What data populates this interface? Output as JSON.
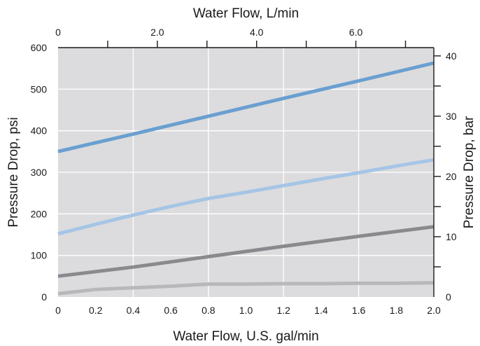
{
  "chart_data": {
    "type": "line",
    "xlabel": "Water Flow, U.S. gal/min",
    "ylabel": "Pressure Drop, psi",
    "x2label": "Water Flow, L/min",
    "y2label": "Pressure Drop, bar",
    "xlim": [
      0,
      2.0
    ],
    "ylim": [
      0,
      600
    ],
    "x2lim": [
      0,
      7.5708
    ],
    "y2lim": [
      0,
      41.37
    ],
    "x_ticks": [
      "0",
      "0.2",
      "0.4",
      "0.6",
      "0.8",
      "1.0",
      "1.2",
      "1.4",
      "1.6",
      "1.8",
      "2.0"
    ],
    "y_ticks": [
      "0",
      "100",
      "200",
      "300",
      "400",
      "500",
      "600"
    ],
    "x2_ticks": [
      {
        "value": 0,
        "label": "0"
      },
      {
        "value": 1,
        "label": ""
      },
      {
        "value": 2,
        "label": "2.0"
      },
      {
        "value": 3,
        "label": ""
      },
      {
        "value": 4,
        "label": "4.0"
      },
      {
        "value": 5,
        "label": ""
      },
      {
        "value": 6,
        "label": "6.0"
      },
      {
        "value": 7,
        "label": ""
      }
    ],
    "y2_ticks": [
      {
        "value": 0,
        "label": "0"
      },
      {
        "value": 5,
        "label": ""
      },
      {
        "value": 10,
        "label": "10"
      },
      {
        "value": 15,
        "label": ""
      },
      {
        "value": 20,
        "label": "20"
      },
      {
        "value": 25,
        "label": ""
      },
      {
        "value": 30,
        "label": "30"
      },
      {
        "value": 35,
        "label": ""
      },
      {
        "value": 40,
        "label": "40"
      }
    ],
    "grid": true,
    "background_color": "#dcdcde",
    "grid_color": "#ffffff",
    "series": [
      {
        "color": "#6a9fd0",
        "x": [
          0,
          0.4,
          0.8,
          1.2,
          1.6,
          2.0
        ],
        "values": [
          350,
          392,
          435,
          478,
          520,
          563
        ]
      },
      {
        "color": "#a6c5e6",
        "x": [
          0,
          0.2,
          0.4,
          0.6,
          0.8,
          1.0,
          1.2,
          1.4,
          1.6,
          1.8,
          2.0
        ],
        "values": [
          152,
          175,
          197,
          218,
          237,
          252,
          268,
          284,
          299,
          315,
          330
        ]
      },
      {
        "color": "#8a8a8e",
        "x": [
          0,
          0.4,
          0.8,
          1.2,
          1.6,
          2.0
        ],
        "values": [
          50,
          72,
          97,
          122,
          146,
          169
        ]
      },
      {
        "color": "#b8b8bb",
        "x": [
          0,
          0.2,
          0.4,
          0.6,
          0.8,
          1.0,
          1.2,
          1.4,
          1.6,
          1.8,
          2.0
        ],
        "values": [
          8,
          18,
          22,
          26,
          31,
          31,
          32,
          32,
          33,
          33,
          34
        ]
      }
    ]
  }
}
